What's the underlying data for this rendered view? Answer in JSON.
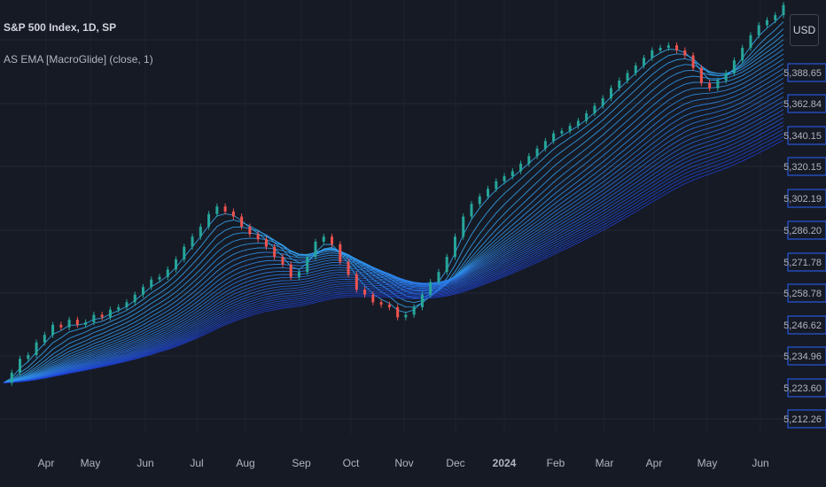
{
  "header": {
    "title": "S&P 500 Index, 1D, SP",
    "indicator": "AS EMA [MacroGlide] (close, 1)",
    "currency": "USD"
  },
  "chart_data": {
    "type": "line",
    "title": "S&P 500 Index, 1D, SP",
    "x_labels": [
      "Apr",
      "May",
      "Jun",
      "Jul",
      "Aug",
      "Sep",
      "Oct",
      "Nov",
      "Dec",
      "2024",
      "Feb",
      "Mar",
      "Apr",
      "May",
      "Jun"
    ],
    "price_scale_labels": [
      "5,388.65",
      "5,362.84",
      "5,340.15",
      "5,320.15",
      "5,302.19",
      "5,286.20",
      "5,271.78",
      "5,258.78",
      "5,246.62",
      "5,234.96",
      "5,223.60",
      "5,212.26"
    ],
    "series": [
      {
        "name": "S&P 500 Index",
        "kind": "candlestick",
        "close": [
          3880,
          3920,
          3975,
          3990,
          4040,
          4070,
          4110,
          4100,
          4130,
          4110,
          4120,
          4150,
          4140,
          4170,
          4180,
          4200,
          4230,
          4260,
          4290,
          4300,
          4330,
          4370,
          4420,
          4460,
          4500,
          4550,
          4580,
          4560,
          4540,
          4500,
          4470,
          4450,
          4420,
          4380,
          4350,
          4300,
          4320,
          4380,
          4440,
          4460,
          4430,
          4360,
          4310,
          4250,
          4230,
          4200,
          4190,
          4180,
          4140,
          4150,
          4180,
          4230,
          4280,
          4320,
          4380,
          4460,
          4540,
          4590,
          4620,
          4650,
          4680,
          4700,
          4720,
          4750,
          4780,
          4810,
          4840,
          4870,
          4880,
          4900,
          4920,
          4950,
          4980,
          5010,
          5050,
          5080,
          5110,
          5140,
          5170,
          5200,
          5210,
          5220,
          5200,
          5180,
          5130,
          5070,
          5050,
          5080,
          5110,
          5160,
          5210,
          5260,
          5300,
          5320,
          5340,
          5380
        ],
        "color_up": "#26a69a",
        "color_down": "#ef5350"
      },
      {
        "name": "EMA ribbon",
        "kind": "ribbon",
        "color_fast": "#38b6ff",
        "color_slow": "#1e3fd1"
      }
    ],
    "grid": true,
    "legend": "top-left"
  }
}
